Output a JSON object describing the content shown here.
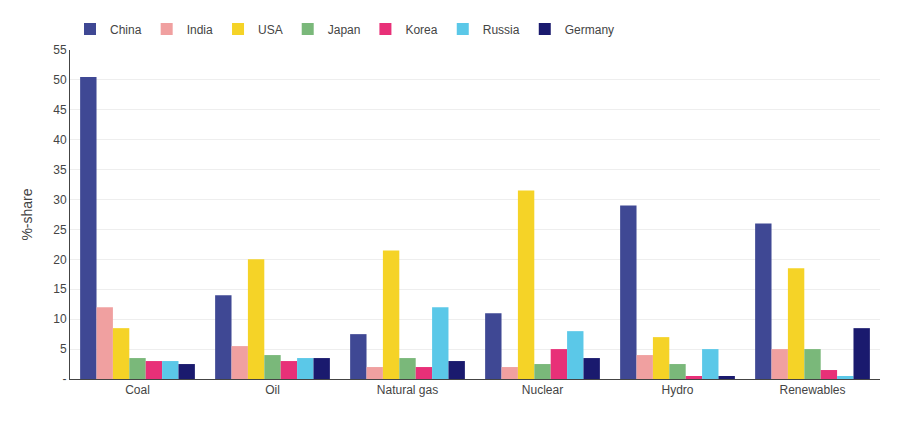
{
  "chart_data": {
    "type": "bar",
    "ylabel": "%-share",
    "categories": [
      "Coal",
      "Oil",
      "Natural gas",
      "Nuclear",
      "Hydro",
      "Renewables"
    ],
    "series": [
      {
        "name": "China",
        "color": "#3f4894",
        "values": [
          50.5,
          14.0,
          7.5,
          11.0,
          29.0,
          26.0
        ]
      },
      {
        "name": "India",
        "color": "#f0a0a0",
        "values": [
          12.0,
          5.5,
          2.0,
          2.0,
          4.0,
          5.0
        ]
      },
      {
        "name": "USA",
        "color": "#f5d327",
        "values": [
          8.5,
          20.0,
          21.5,
          31.5,
          7.0,
          18.5
        ]
      },
      {
        "name": "Japan",
        "color": "#7ab87a",
        "values": [
          3.5,
          4.0,
          3.5,
          2.5,
          2.5,
          5.0
        ]
      },
      {
        "name": "Korea",
        "color": "#e83078",
        "values": [
          3.0,
          3.0,
          2.0,
          5.0,
          0.5,
          1.5
        ]
      },
      {
        "name": "Russia",
        "color": "#5bc8e8",
        "values": [
          3.0,
          3.5,
          12.0,
          8.0,
          5.0,
          0.5
        ]
      },
      {
        "name": "Germany",
        "color": "#1a1a6e",
        "values": [
          2.5,
          3.5,
          3.0,
          3.5,
          0.5,
          8.5
        ]
      }
    ],
    "ylim": [
      0,
      55
    ],
    "yticks": [
      {
        "value": 0,
        "label": "-"
      },
      5,
      10,
      15,
      20,
      25,
      30,
      35,
      40,
      45,
      50,
      55
    ],
    "grid": true,
    "legend": "upper left"
  }
}
